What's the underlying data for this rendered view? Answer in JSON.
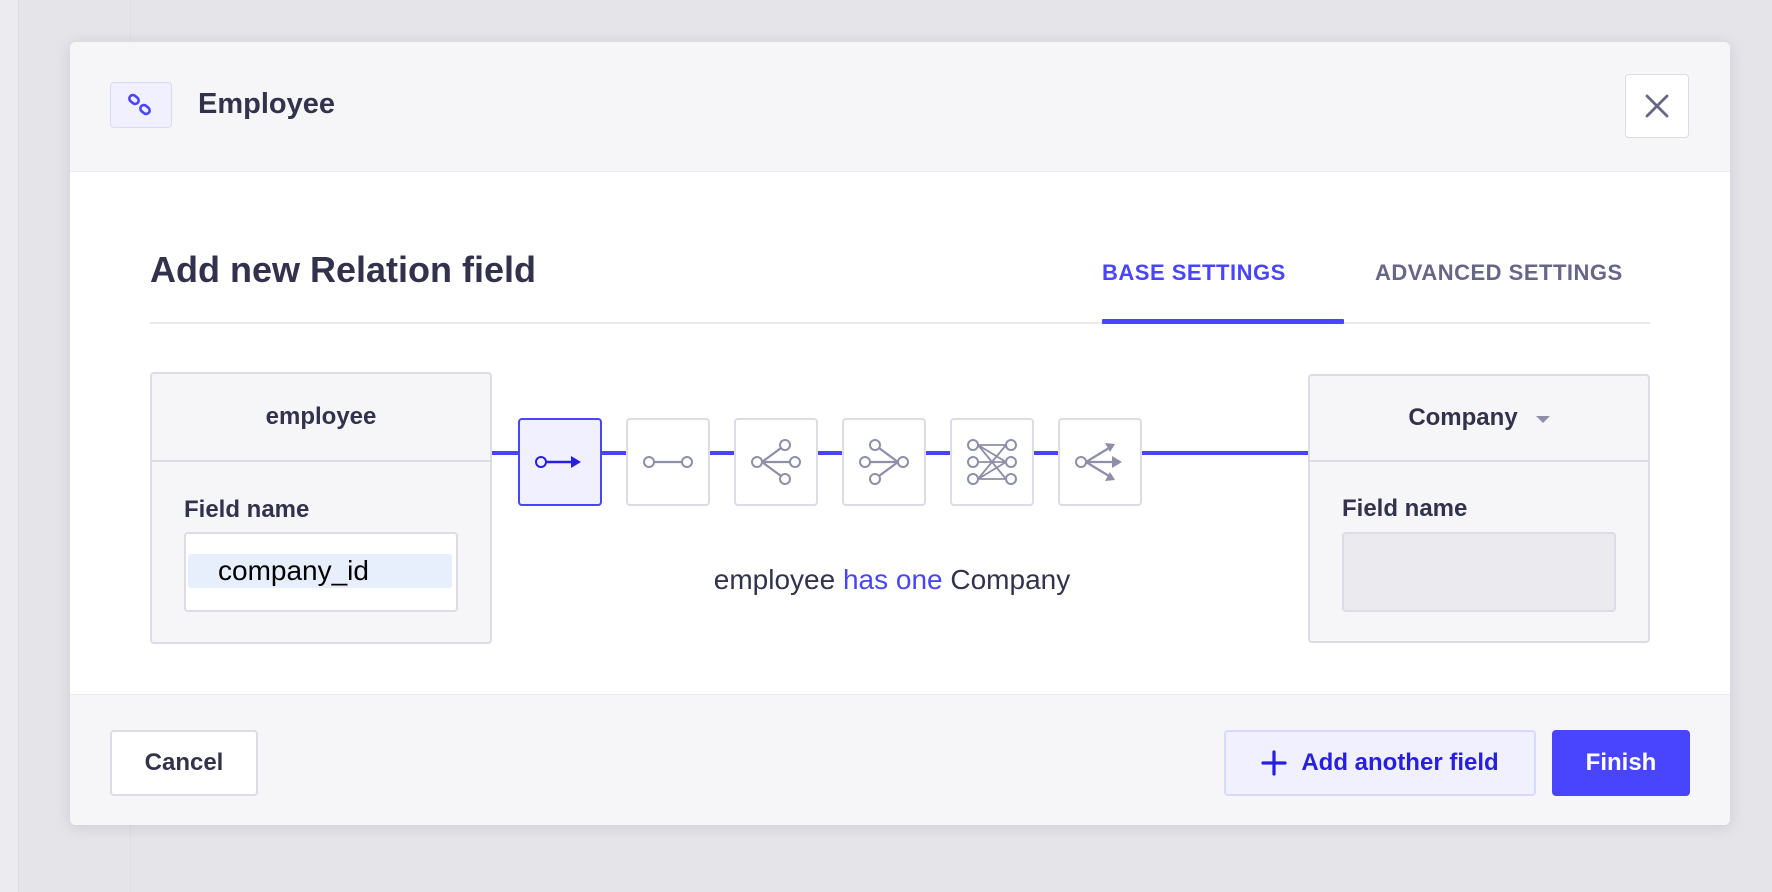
{
  "header": {
    "icon": "link-icon",
    "title": "Employee",
    "close_icon": "close-icon"
  },
  "main": {
    "section_title": "Add new Relation field",
    "tabs": [
      {
        "label": "BASE SETTINGS",
        "active": true
      },
      {
        "label": "ADVANCED SETTINGS",
        "active": false
      }
    ],
    "left_box": {
      "title": "employee",
      "field_label": "Field name",
      "field_value": "company_id"
    },
    "right_box": {
      "title": "Company",
      "dropdown_icon": "caret-down-icon",
      "field_label": "Field name",
      "field_value": ""
    },
    "relation_types": [
      {
        "icon": "one-way-relation-icon",
        "active": true
      },
      {
        "icon": "one-to-one-relation-icon",
        "active": false
      },
      {
        "icon": "one-to-many-relation-icon",
        "active": false
      },
      {
        "icon": "many-to-one-relation-icon",
        "active": false
      },
      {
        "icon": "many-to-many-relation-icon",
        "active": false
      },
      {
        "icon": "many-way-relation-icon",
        "active": false
      }
    ],
    "relation_description": {
      "left": "employee",
      "middle": "has one",
      "right": "Company"
    }
  },
  "footer": {
    "cancel_label": "Cancel",
    "add_field_label": "Add another field",
    "add_icon": "plus-icon",
    "finish_label": "Finish"
  },
  "colors": {
    "accent": "#4945ff",
    "accent_dark": "#271fe0",
    "text": "#32324d",
    "muted": "#666687",
    "border": "#dcdce4",
    "surface": "#f6f6f9"
  }
}
